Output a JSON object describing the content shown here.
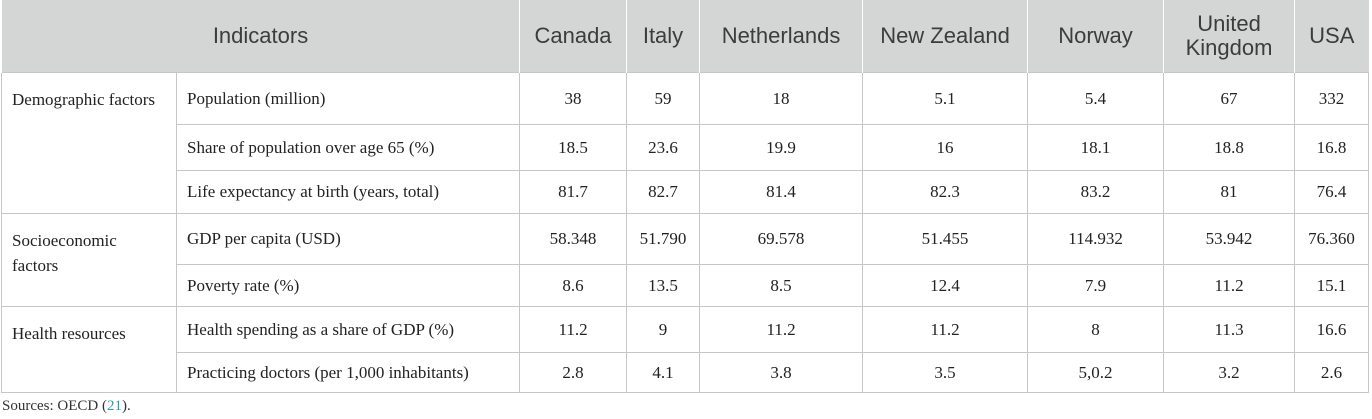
{
  "table": {
    "header": [
      "Indicators",
      "Canada",
      "Italy",
      "Netherlands",
      "New Zealand",
      "Norway",
      "United Kingdom",
      "USA"
    ],
    "groups": [
      {
        "label": "Demographic factors",
        "rows": [
          {
            "indicator": "Population (million)",
            "values": [
              "38",
              "59",
              "18",
              "5.1",
              "5.4",
              "67",
              "332"
            ]
          },
          {
            "indicator": "Share of population over age 65 (%)",
            "values": [
              "18.5",
              "23.6",
              "19.9",
              "16",
              "18.1",
              "18.8",
              "16.8"
            ]
          },
          {
            "indicator": "Life expectancy at birth (years, total)",
            "values": [
              "81.7",
              "82.7",
              "81.4",
              "82.3",
              "83.2",
              "81",
              "76.4"
            ]
          }
        ]
      },
      {
        "label": "Socioeconomic factors",
        "rows": [
          {
            "indicator": "GDP per capita (USD)",
            "values": [
              "58.348",
              "51.790",
              "69.578",
              "51.455",
              "114.932",
              "53.942",
              "76.360"
            ]
          },
          {
            "indicator": "Poverty rate (%)",
            "values": [
              "8.6",
              "13.5",
              "8.5",
              "12.4",
              "7.9",
              "11.2",
              "15.1"
            ]
          }
        ]
      },
      {
        "label": "Health resources",
        "rows": [
          {
            "indicator": "Health spending as a share of GDP (%)",
            "values": [
              "11.2",
              "9",
              "11.2",
              "11.2",
              "8",
              "11.3",
              "16.6"
            ]
          },
          {
            "indicator": "Practicing doctors (per 1,000 inhabitants)",
            "values": [
              "2.8",
              "4.1",
              "3.8",
              "3.5",
              "5,0.2",
              "3.2",
              "2.6"
            ]
          }
        ]
      }
    ]
  },
  "source": {
    "text": "Sources: OECD (",
    "ref": "21",
    "tail": ")."
  }
}
